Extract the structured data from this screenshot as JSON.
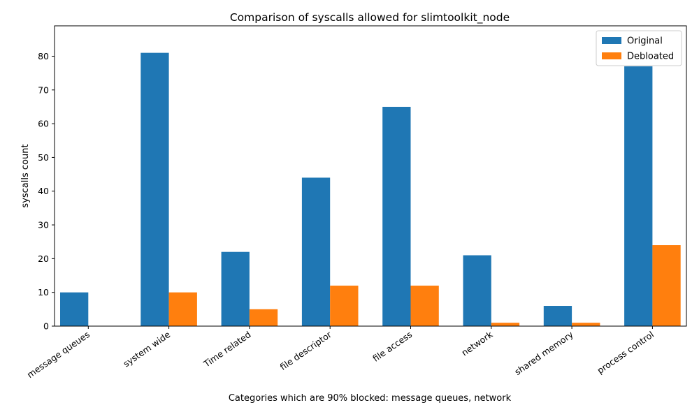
{
  "chart_data": {
    "type": "bar",
    "title": "Comparison of syscalls allowed for slimtoolkit_node",
    "xlabel": "Categories which are 90% blocked: message queues, network",
    "ylabel": "syscalls count",
    "categories": [
      "message queues",
      "system wide",
      "Time related",
      "file descriptor",
      "file access",
      "network",
      "shared memory",
      "process control"
    ],
    "series": [
      {
        "name": "Original",
        "values": [
          10,
          81,
          22,
          44,
          65,
          21,
          6,
          77
        ],
        "color": "#1f77b4"
      },
      {
        "name": "Debloated",
        "values": [
          0,
          10,
          5,
          12,
          12,
          1,
          1,
          24
        ],
        "color": "#ff7f0e"
      }
    ],
    "ylim": [
      0,
      89
    ],
    "yticks": [
      0,
      10,
      20,
      30,
      40,
      50,
      60,
      70,
      80
    ],
    "legend": "top-right",
    "grid": false
  }
}
